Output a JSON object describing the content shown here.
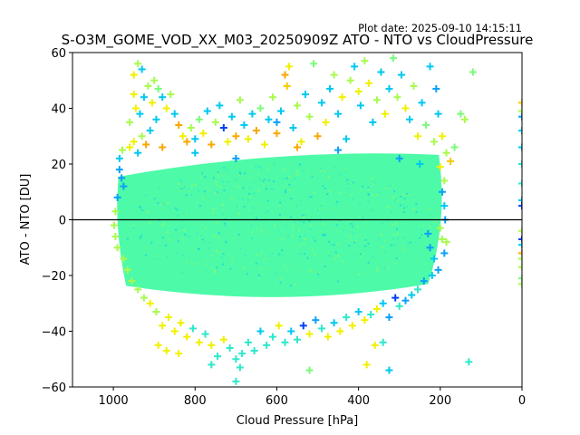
{
  "chart_data": {
    "type": "scatter",
    "title": "S-O3M_GOME_VOD_XX_M03_20250909Z ATO - NTO vs CloudPressure",
    "subtitle": "Plot date: 2025-09-10 14:15:11",
    "xlabel": "Cloud Pressure [hPa]",
    "ylabel": "ATO - NTO [DU]",
    "xlim": [
      1100,
      0
    ],
    "ylim": [
      -60,
      60
    ],
    "x_ticks": [
      1000,
      800,
      600,
      400,
      200,
      0
    ],
    "x_tick_labels": [
      "1000",
      "800",
      "600",
      "400",
      "200",
      "0"
    ],
    "y_ticks": [
      -60,
      -40,
      -20,
      0,
      20,
      40,
      60
    ],
    "y_tick_labels": [
      "−60",
      "−40",
      "−20",
      "0",
      "20",
      "40",
      "60"
    ],
    "reference_line": {
      "y": 0,
      "color": "#000000"
    },
    "marker": "+",
    "grid": false,
    "colors": {
      "mint": "#4dfaa8",
      "aqua": "#2ee8c8",
      "cyan": "#00c8f0",
      "sky": "#0aa0f8",
      "blue": "#0040f0",
      "lime": "#a8fa4e",
      "yellow": "#f0f000",
      "gold": "#f8c800",
      "orange": "#f8a800",
      "green": "#7cfa7c"
    },
    "core_region": {
      "x_range": [
        1000,
        190
      ],
      "y_range": [
        -25,
        22
      ],
      "color": "mint"
    },
    "points": [
      [
        985,
        18,
        "sky"
      ],
      [
        980,
        15,
        "sky"
      ],
      [
        975,
        12,
        "sky"
      ],
      [
        990,
        8,
        "sky"
      ],
      [
        995,
        3,
        "lime"
      ],
      [
        998,
        -2,
        "lime"
      ],
      [
        995,
        -6,
        "lime"
      ],
      [
        990,
        -10,
        "lime"
      ],
      [
        985,
        22,
        "cyan"
      ],
      [
        978,
        25,
        "lime"
      ],
      [
        960,
        26,
        "yellow"
      ],
      [
        950,
        28,
        "yellow"
      ],
      [
        940,
        24,
        "cyan"
      ],
      [
        930,
        30,
        "lime"
      ],
      [
        920,
        27,
        "orange"
      ],
      [
        910,
        32,
        "cyan"
      ],
      [
        960,
        35,
        "lime"
      ],
      [
        945,
        40,
        "yellow"
      ],
      [
        935,
        38,
        "cyan"
      ],
      [
        950,
        45,
        "yellow"
      ],
      [
        925,
        44,
        "cyan"
      ],
      [
        915,
        48,
        "lime"
      ],
      [
        905,
        42,
        "yellow"
      ],
      [
        895,
        36,
        "cyan"
      ],
      [
        950,
        52,
        "yellow"
      ],
      [
        940,
        56,
        "lime"
      ],
      [
        930,
        54,
        "cyan"
      ],
      [
        900,
        50,
        "lime"
      ],
      [
        890,
        47,
        "green"
      ],
      [
        880,
        44,
        "cyan"
      ],
      [
        870,
        40,
        "yellow"
      ],
      [
        860,
        45,
        "lime"
      ],
      [
        850,
        38,
        "cyan"
      ],
      [
        840,
        34,
        "orange"
      ],
      [
        830,
        30,
        "yellow"
      ],
      [
        820,
        28,
        "orange"
      ],
      [
        810,
        33,
        "lime"
      ],
      [
        800,
        29,
        "cyan"
      ],
      [
        790,
        36,
        "green"
      ],
      [
        780,
        31,
        "yellow"
      ],
      [
        770,
        39,
        "cyan"
      ],
      [
        760,
        27,
        "orange"
      ],
      [
        750,
        35,
        "lime"
      ],
      [
        740,
        41,
        "cyan"
      ],
      [
        730,
        33,
        "blue"
      ],
      [
        720,
        28,
        "yellow"
      ],
      [
        710,
        37,
        "cyan"
      ],
      [
        700,
        30,
        "orange"
      ],
      [
        690,
        43,
        "lime"
      ],
      [
        680,
        34,
        "cyan"
      ],
      [
        670,
        29,
        "yellow"
      ],
      [
        660,
        38,
        "cyan"
      ],
      [
        650,
        32,
        "orange"
      ],
      [
        640,
        40,
        "green"
      ],
      [
        630,
        27,
        "yellow"
      ],
      [
        620,
        36,
        "cyan"
      ],
      [
        610,
        44,
        "lime"
      ],
      [
        600,
        31,
        "orange"
      ],
      [
        590,
        39,
        "cyan"
      ],
      [
        580,
        52,
        "orange"
      ],
      [
        575,
        48,
        "gold"
      ],
      [
        570,
        55,
        "yellow"
      ],
      [
        560,
        33,
        "cyan"
      ],
      [
        550,
        41,
        "lime"
      ],
      [
        540,
        28,
        "yellow"
      ],
      [
        530,
        45,
        "cyan"
      ],
      [
        520,
        37,
        "lime"
      ],
      [
        510,
        56,
        "green"
      ],
      [
        500,
        30,
        "orange"
      ],
      [
        490,
        42,
        "cyan"
      ],
      [
        480,
        35,
        "yellow"
      ],
      [
        470,
        47,
        "cyan"
      ],
      [
        460,
        52,
        "lime"
      ],
      [
        450,
        38,
        "cyan"
      ],
      [
        440,
        44,
        "yellow"
      ],
      [
        430,
        29,
        "cyan"
      ],
      [
        420,
        50,
        "lime"
      ],
      [
        410,
        55,
        "cyan"
      ],
      [
        400,
        46,
        "yellow"
      ],
      [
        395,
        41,
        "cyan"
      ],
      [
        385,
        57,
        "lime"
      ],
      [
        375,
        49,
        "yellow"
      ],
      [
        365,
        35,
        "cyan"
      ],
      [
        355,
        43,
        "lime"
      ],
      [
        345,
        53,
        "cyan"
      ],
      [
        335,
        38,
        "yellow"
      ],
      [
        325,
        47,
        "cyan"
      ],
      [
        315,
        58,
        "green"
      ],
      [
        305,
        44,
        "lime"
      ],
      [
        295,
        52,
        "cyan"
      ],
      [
        285,
        40,
        "yellow"
      ],
      [
        275,
        36,
        "cyan"
      ],
      [
        265,
        48,
        "lime"
      ],
      [
        255,
        30,
        "yellow"
      ],
      [
        245,
        42,
        "cyan"
      ],
      [
        235,
        34,
        "green"
      ],
      [
        225,
        55,
        "cyan"
      ],
      [
        215,
        28,
        "lime"
      ],
      [
        205,
        38,
        "cyan"
      ],
      [
        195,
        30,
        "yellow"
      ],
      [
        185,
        24,
        "lime"
      ],
      [
        175,
        21,
        "gold"
      ],
      [
        165,
        26,
        "green"
      ],
      [
        150,
        38,
        "green"
      ],
      [
        140,
        36,
        "lime"
      ],
      [
        120,
        53,
        "green"
      ],
      [
        210,
        47,
        "sky"
      ],
      [
        200,
        19,
        "yellow"
      ],
      [
        190,
        14,
        "lime"
      ],
      [
        195,
        10,
        "sky"
      ],
      [
        190,
        5,
        "cyan"
      ],
      [
        188,
        0,
        "sky"
      ],
      [
        230,
        -5,
        "sky"
      ],
      [
        225,
        -10,
        "sky"
      ],
      [
        215,
        -14,
        "cyan"
      ],
      [
        205,
        -18,
        "sky"
      ],
      [
        200,
        -3,
        "lime"
      ],
      [
        195,
        -7,
        "lime"
      ],
      [
        190,
        -12,
        "sky"
      ],
      [
        185,
        -8,
        "lime"
      ],
      [
        220,
        -20,
        "cyan"
      ],
      [
        240,
        -22,
        "sky"
      ],
      [
        255,
        -25,
        "aqua"
      ],
      [
        270,
        -27,
        "cyan"
      ],
      [
        285,
        -29,
        "sky"
      ],
      [
        300,
        -31,
        "aqua"
      ],
      [
        310,
        -28,
        "blue"
      ],
      [
        325,
        -35,
        "sky"
      ],
      [
        340,
        -30,
        "cyan"
      ],
      [
        355,
        -32,
        "yellow"
      ],
      [
        370,
        -34,
        "aqua"
      ],
      [
        385,
        -36,
        "yellow"
      ],
      [
        400,
        -33,
        "cyan"
      ],
      [
        415,
        -38,
        "yellow"
      ],
      [
        430,
        -35,
        "aqua"
      ],
      [
        445,
        -40,
        "yellow"
      ],
      [
        460,
        -37,
        "cyan"
      ],
      [
        475,
        -42,
        "yellow"
      ],
      [
        490,
        -39,
        "aqua"
      ],
      [
        505,
        -36,
        "sky"
      ],
      [
        520,
        -41,
        "yellow"
      ],
      [
        535,
        -38,
        "blue"
      ],
      [
        550,
        -43,
        "aqua"
      ],
      [
        565,
        -40,
        "cyan"
      ],
      [
        580,
        -44,
        "aqua"
      ],
      [
        595,
        -38,
        "yellow"
      ],
      [
        610,
        -42,
        "aqua"
      ],
      [
        625,
        -45,
        "aqua"
      ],
      [
        640,
        -40,
        "cyan"
      ],
      [
        655,
        -47,
        "aqua"
      ],
      [
        670,
        -44,
        "aqua"
      ],
      [
        685,
        -48,
        "aqua"
      ],
      [
        700,
        -50,
        "aqua"
      ],
      [
        715,
        -46,
        "aqua"
      ],
      [
        730,
        -43,
        "yellow"
      ],
      [
        745,
        -49,
        "aqua"
      ],
      [
        760,
        -45,
        "yellow"
      ],
      [
        775,
        -41,
        "aqua"
      ],
      [
        790,
        -44,
        "yellow"
      ],
      [
        805,
        -39,
        "aqua"
      ],
      [
        820,
        -42,
        "yellow"
      ],
      [
        835,
        -37,
        "yellow"
      ],
      [
        850,
        -40,
        "yellow"
      ],
      [
        865,
        -35,
        "yellow"
      ],
      [
        880,
        -38,
        "yellow"
      ],
      [
        895,
        -33,
        "lime"
      ],
      [
        910,
        -30,
        "yellow"
      ],
      [
        925,
        -28,
        "lime"
      ],
      [
        940,
        -25,
        "lime"
      ],
      [
        955,
        -22,
        "lime"
      ],
      [
        965,
        -18,
        "lime"
      ],
      [
        975,
        -14,
        "lime"
      ],
      [
        890,
        -45,
        "yellow"
      ],
      [
        870,
        -47,
        "yellow"
      ],
      [
        840,
        -48,
        "yellow"
      ],
      [
        760,
        -52,
        "aqua"
      ],
      [
        700,
        -58,
        "aqua"
      ],
      [
        690,
        -53,
        "aqua"
      ],
      [
        520,
        -54,
        "green"
      ],
      [
        380,
        -52,
        "yellow"
      ],
      [
        325,
        -54,
        "cyan"
      ],
      [
        130,
        -51,
        "aqua"
      ],
      [
        360,
        -45,
        "yellow"
      ],
      [
        340,
        -44,
        "aqua"
      ],
      [
        600,
        35,
        "sky"
      ],
      [
        450,
        25,
        "sky"
      ],
      [
        300,
        22,
        "sky"
      ],
      [
        250,
        20,
        "cyan"
      ],
      [
        700,
        22,
        "sky"
      ],
      [
        800,
        24,
        "cyan"
      ],
      [
        880,
        26,
        "orange"
      ],
      [
        550,
        26,
        "orange"
      ],
      [
        0,
        42,
        "gold"
      ],
      [
        0,
        39,
        "lime"
      ],
      [
        0,
        37,
        "sky"
      ],
      [
        0,
        32,
        "cyan"
      ],
      [
        0,
        26,
        "cyan"
      ],
      [
        0,
        20,
        "aqua"
      ],
      [
        0,
        13,
        "aqua"
      ],
      [
        0,
        7,
        "cyan"
      ],
      [
        0,
        5,
        "blue"
      ],
      [
        0,
        -4,
        "lime"
      ],
      [
        0,
        -7,
        "blue"
      ],
      [
        0,
        -9,
        "cyan"
      ],
      [
        0,
        -12,
        "orange"
      ],
      [
        0,
        -14,
        "lime"
      ],
      [
        0,
        -17,
        "lime"
      ],
      [
        0,
        -21,
        "green"
      ],
      [
        0,
        -23,
        "lime"
      ]
    ]
  }
}
